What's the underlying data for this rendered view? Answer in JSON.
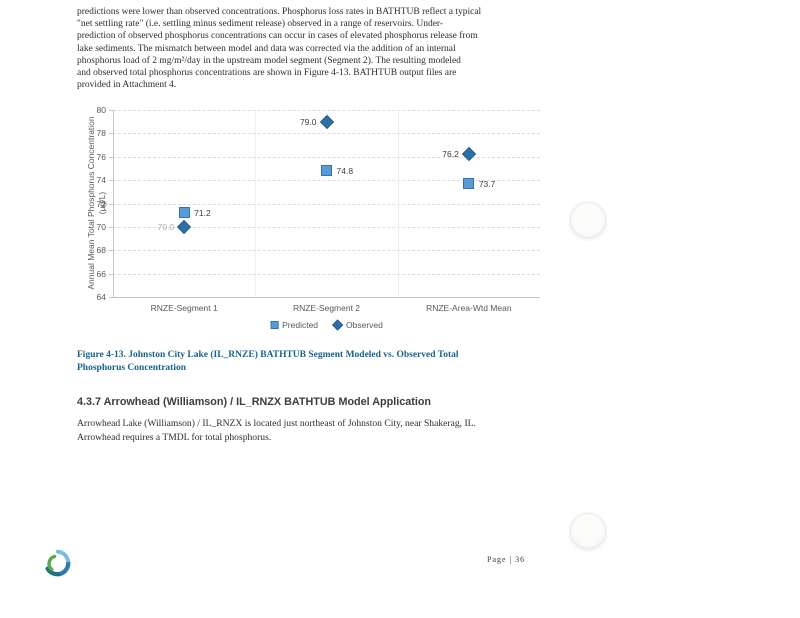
{
  "intro": {
    "lines": [
      "predictions were lower than observed concentrations. Phosphorus loss rates in BATHTUB reflect a typical",
      "\"net settling rate\" (i.e. settling minus sediment release) observed in a range of reservoirs.  Under-",
      "prediction of observed phosphorus concentrations can occur in cases of elevated phosphorus release from",
      "lake sediments. The mismatch between model and data was corrected via the addition of an internal",
      "phosphorus load of 2 mg/m²/day in the upstream model segment (Segment 2). The resulting modeled",
      "and observed total phosphorus concentrations are shown in Figure 4-13.  BATHTUB output files are",
      "provided in Attachment 4."
    ]
  },
  "chart_data": {
    "type": "scatter",
    "title": "",
    "categories": [
      "RNZE-Segment 1",
      "RNZE-Segment 2",
      "RNZE-Area-Wtd Mean"
    ],
    "series": [
      {
        "name": "Predicted",
        "marker": "square",
        "fill": "#5b9bd5",
        "border": "#2e75b6",
        "values": [
          71.2,
          74.8,
          73.7
        ],
        "label_side": "right",
        "muted_labels": []
      },
      {
        "name": "Observed",
        "marker": "diamond",
        "fill": "#2f6fa7",
        "border": "#265d8c",
        "values": [
          70.0,
          79.0,
          76.2
        ],
        "label_side": "left",
        "muted_labels": [
          0
        ]
      }
    ],
    "ylabel_line1": "Annual Mean Total Phosphorus Concentration",
    "ylabel_line2": "(µg/L)",
    "ylim": [
      64,
      80
    ],
    "ytick_step": 2,
    "grid": true,
    "legend_position": "bottom",
    "gridline_color": "#dcdcdc",
    "axis_text_color": "#595959"
  },
  "figure_caption": {
    "lines": [
      "Figure 4-13. Johnston City Lake (IL_RNZE) BATHTUB Segment Modeled vs. Observed Total",
      "Phosphorus Concentration"
    ]
  },
  "section": {
    "heading": "4.3.7 Arrowhead (Williamson) / IL_RNZX BATHTUB Model Application",
    "body_lines": [
      "Arrowhead Lake (Williamson) / IL_RNZX is located just northeast of Johnston City, near Shakerag, IL.",
      "Arrowhead requires a TMDL for total phosphorus."
    ]
  },
  "footer": {
    "page_label": "Page | 36",
    "logo_icon": "swirl-globe-logo"
  }
}
